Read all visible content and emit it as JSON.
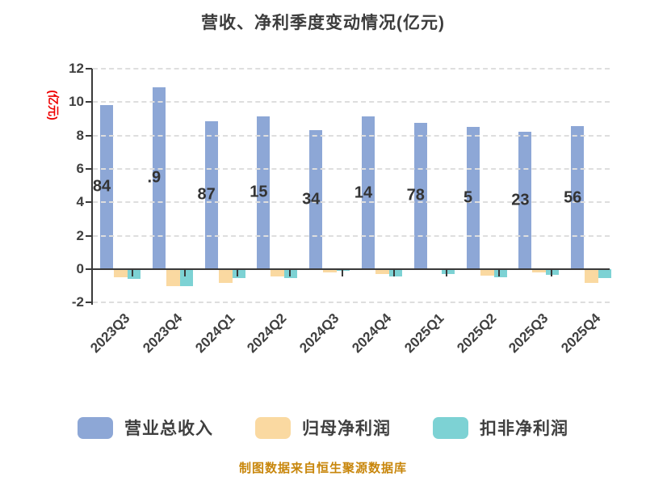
{
  "title": "营收、净利季度变动情况(亿元)",
  "y_axis": {
    "label": "(亿元)",
    "label_color": "#ee0000",
    "ticks": [
      12,
      10,
      8,
      6,
      4,
      2,
      0,
      -2
    ],
    "min": -2,
    "max": 12
  },
  "chart_data": {
    "type": "bar",
    "title": "营收、净利季度变动情况(亿元)",
    "ylabel": "(亿元)",
    "ylim": [
      -2,
      12
    ],
    "grid": "horizontal dashed, drawn over bars",
    "legend_position": "bottom",
    "categories": [
      "2023Q3",
      "2023Q4",
      "2024Q1",
      "2024Q2",
      "2024Q3",
      "2024Q4",
      "2025Q1",
      "2025Q2",
      "2025Q3",
      "2025Q4"
    ],
    "series": [
      {
        "name": "营业总收入",
        "color": "#8da7d6",
        "values": [
          9.84,
          10.9,
          8.87,
          9.15,
          8.34,
          9.14,
          8.78,
          8.5,
          8.23,
          8.56
        ],
        "visible_label_fragments": [
          "84",
          ".9",
          "87",
          "15",
          "34",
          "14",
          "78",
          "5",
          "23",
          "56"
        ]
      },
      {
        "name": "归母净利润",
        "color": "#fad9a1",
        "values": [
          -0.48,
          -1.04,
          -0.8,
          -0.45,
          -0.18,
          -0.3,
          0.05,
          -0.37,
          -0.18,
          -0.8
        ]
      },
      {
        "name": "扣非净利润",
        "color": "#7dd2d4",
        "values": [
          -0.59,
          -1.0,
          -0.51,
          -0.51,
          -0.12,
          -0.42,
          -0.3,
          -0.48,
          -0.32,
          -0.53
        ]
      }
    ]
  },
  "legend": {
    "items": [
      {
        "label": "营业总收入",
        "color": "#8da7d6"
      },
      {
        "label": "归母净利润",
        "color": "#fad9a1"
      },
      {
        "label": "扣非净利润",
        "color": "#7dd2d4"
      }
    ]
  },
  "footer": {
    "text": "制图数据来自恒生聚源数据库",
    "color": "#c8860b"
  }
}
